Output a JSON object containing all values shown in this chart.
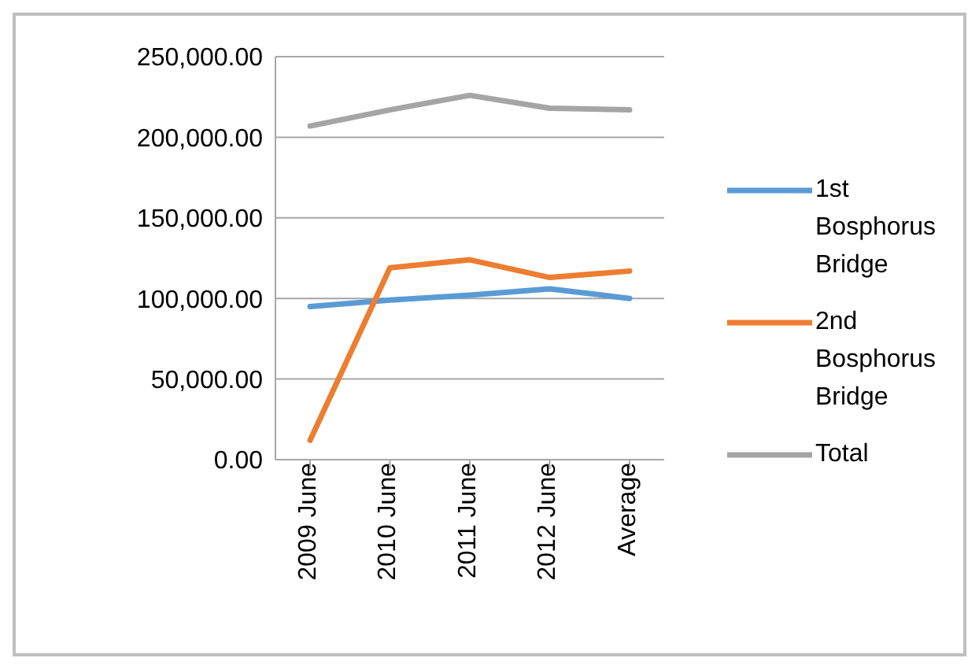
{
  "chart_data": {
    "type": "line",
    "categories": [
      "2009 June",
      "2010 June",
      "2011 June",
      "2012 June",
      "Average"
    ],
    "series": [
      {
        "name": "1st Bosphorus Bridge",
        "color": "#5b9bd5",
        "values": [
          95000,
          99000,
          102000,
          106000,
          100000
        ]
      },
      {
        "name": "2nd Bosphorus Bridge",
        "color": "#ed7d31",
        "values": [
          12000,
          119000,
          124000,
          113000,
          117000
        ]
      },
      {
        "name": "Total",
        "color": "#a5a5a5",
        "values": [
          207000,
          217000,
          226000,
          218000,
          217000
        ]
      }
    ],
    "ylim": [
      0,
      250000
    ],
    "yticks": [
      {
        "value": 0,
        "label": "0.00"
      },
      {
        "value": 50000,
        "label": "50,000.00"
      },
      {
        "value": 100000,
        "label": "100,000.00"
      },
      {
        "value": 150000,
        "label": "150,000.00"
      },
      {
        "value": 200000,
        "label": "200,000.00"
      },
      {
        "value": 250000,
        "label": "250,000.00"
      }
    ],
    "grid": "y",
    "legend": "right",
    "marker": "none",
    "line_style": "solid"
  }
}
